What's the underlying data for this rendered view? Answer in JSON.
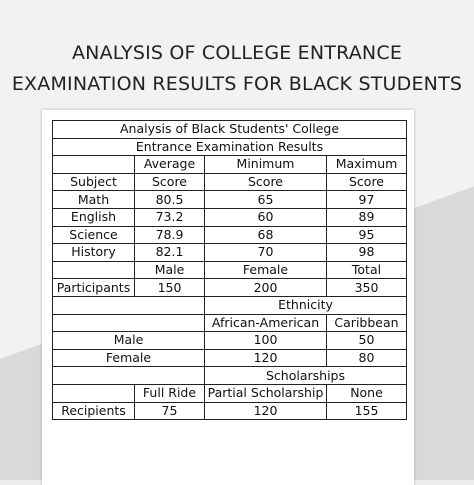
{
  "heading": {
    "line1": "ANALYSIS OF COLLEGE ENTRANCE",
    "line2": "EXAMINATION RESULTS FOR BLACK STUDENTS"
  },
  "table": {
    "caption_line1": "Analysis of Black Students' College",
    "caption_line2": "Entrance Examination Results",
    "scores": {
      "header_top": [
        "Average",
        "Minimum",
        "Maximum"
      ],
      "header_bottom": [
        "Subject",
        "Score",
        "Score",
        "Score"
      ],
      "rows": [
        [
          "Math",
          "80.5",
          "65",
          "97"
        ],
        [
          "English",
          "73.2",
          "60",
          "89"
        ],
        [
          "Science",
          "78.9",
          "68",
          "95"
        ],
        [
          "History",
          "82.1",
          "70",
          "98"
        ]
      ]
    },
    "participants": {
      "header": [
        "Male",
        "Female",
        "Total"
      ],
      "label": "Participants",
      "values": [
        "150",
        "200",
        "350"
      ]
    },
    "ethnicity": {
      "title": "Ethnicity",
      "header": [
        "African-American",
        "Caribbean"
      ],
      "rows": [
        [
          "Male",
          "100",
          "50"
        ],
        [
          "Female",
          "120",
          "80"
        ]
      ]
    },
    "scholarships": {
      "title": "Scholarships",
      "header": [
        "Full Ride",
        "Partial Scholarship",
        "None"
      ],
      "label": "Recipients",
      "values": [
        "75",
        "120",
        "155"
      ]
    }
  }
}
